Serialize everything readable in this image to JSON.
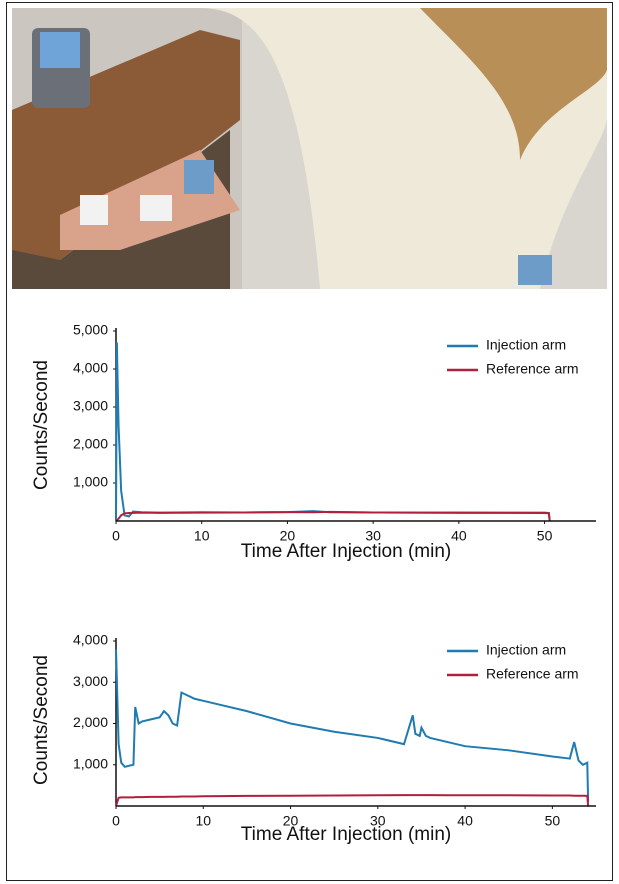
{
  "chart_data": [
    {
      "type": "line",
      "xlabel": "Time After Injection (min)",
      "ylabel": "Counts/Second",
      "x": [
        0,
        0.1,
        0.3,
        0.6,
        1,
        1.5,
        2,
        3,
        5,
        10,
        15,
        20,
        23,
        25,
        30,
        35,
        40,
        45,
        50,
        50.5,
        50.6
      ],
      "series": [
        {
          "name": "Injection arm",
          "color": "#1f7bb0",
          "values": [
            0,
            4700,
            2500,
            800,
            150,
            120,
            250,
            230,
            220,
            230,
            225,
            235,
            260,
            230,
            225,
            220,
            225,
            220,
            220,
            210,
            0
          ]
        },
        {
          "name": "Reference arm",
          "color": "#b0203c",
          "values": [
            0,
            20,
            60,
            150,
            200,
            210,
            215,
            220,
            215,
            220,
            225,
            235,
            230,
            240,
            225,
            220,
            215,
            215,
            210,
            205,
            0
          ]
        }
      ],
      "xlim": [
        0,
        56
      ],
      "ylim": [
        0,
        5000
      ],
      "xticks": [
        0,
        10,
        20,
        30,
        40,
        50
      ],
      "yticks": [
        {
          "value": 1000,
          "label": "1,000"
        },
        {
          "value": 2000,
          "label": "2,000"
        },
        {
          "value": 3000,
          "label": "3,000"
        },
        {
          "value": 4000,
          "label": "4,000"
        },
        {
          "value": 5000,
          "label": "5,000"
        }
      ],
      "legend": "upper right",
      "grid": false
    },
    {
      "type": "line",
      "xlabel": "Time After Injection (min)",
      "ylabel": "Counts/Second",
      "x": [
        0,
        0.3,
        0.6,
        1,
        2,
        2.2,
        2.6,
        3,
        4,
        5,
        5.5,
        6,
        6.5,
        7,
        7.5,
        8,
        9,
        10,
        12,
        15,
        20,
        25,
        30,
        33,
        34,
        34.3,
        34.8,
        35,
        35.5,
        36,
        38,
        40,
        45,
        50,
        52,
        52.5,
        53,
        53.5,
        54,
        54.1
      ],
      "series": [
        {
          "name": "Injection arm",
          "color": "#1f7bb0",
          "values": [
            3800,
            1500,
            1050,
            950,
            1000,
            2400,
            2000,
            2050,
            2100,
            2150,
            2300,
            2200,
            2000,
            1950,
            2750,
            2700,
            2600,
            2550,
            2450,
            2300,
            2000,
            1800,
            1650,
            1500,
            2200,
            1750,
            1700,
            1900,
            1700,
            1650,
            1550,
            1450,
            1350,
            1200,
            1150,
            1550,
            1100,
            1000,
            1050,
            100
          ]
        },
        {
          "name": "Reference arm",
          "color": "#b0203c",
          "values": [
            0,
            200,
            210,
            210,
            210,
            215,
            215,
            215,
            220,
            220,
            220,
            225,
            225,
            225,
            230,
            230,
            230,
            235,
            240,
            245,
            250,
            255,
            260,
            265,
            265,
            265,
            265,
            265,
            265,
            265,
            260,
            260,
            260,
            255,
            255,
            250,
            250,
            250,
            245,
            0
          ]
        }
      ],
      "xlim": [
        0,
        55
      ],
      "ylim": [
        0,
        4000
      ],
      "xticks": [
        0,
        10,
        20,
        30,
        40,
        50
      ],
      "yticks": [
        {
          "value": 1000,
          "label": "1,000"
        },
        {
          "value": 2000,
          "label": "2,000"
        },
        {
          "value": 3000,
          "label": "3,000"
        },
        {
          "value": 4000,
          "label": "4,000"
        }
      ],
      "legend": "upper right",
      "grid": false
    }
  ]
}
